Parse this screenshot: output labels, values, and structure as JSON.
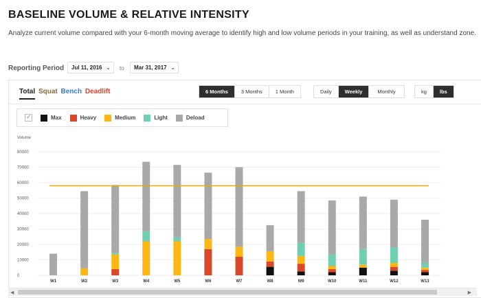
{
  "header": {
    "title": "BASELINE VOLUME & RELATIVE INTENSITY",
    "description": "Analyze current volume compared with your 6-month moving average to identify high and low volume periods in your training, as well as understand zone."
  },
  "reporting": {
    "label": "Reporting Period",
    "start_date": "Jul 11, 2016",
    "to": "to",
    "end_date": "Mar 31, 2017"
  },
  "lifts": {
    "total": "Total",
    "squat": "Squat",
    "bench": "Bench",
    "deadlift": "Deadlift"
  },
  "range_buttons": [
    "6 Months",
    "3 Months",
    "1 Month"
  ],
  "range_selected": "6 Months",
  "interval_buttons": [
    "Daily",
    "Weekly",
    "Monthly"
  ],
  "interval_selected": "Weekly",
  "unit_buttons": [
    "kg",
    "lbs"
  ],
  "unit_selected": "lbs",
  "legend": [
    {
      "name": "Max",
      "color": "#111111"
    },
    {
      "name": "Heavy",
      "color": "#d9482b"
    },
    {
      "name": "Medium",
      "color": "#fdb715"
    },
    {
      "name": "Light",
      "color": "#6fcfb2"
    },
    {
      "name": "Deload",
      "color": "#a9a9a9"
    }
  ],
  "chart_data": {
    "type": "bar",
    "stacked": true,
    "ylabel": "Volume",
    "ylim": [
      0,
      80000
    ],
    "yticks": [
      0,
      10000,
      20000,
      30000,
      40000,
      50000,
      60000,
      70000,
      80000
    ],
    "categories": [
      "W1",
      "W2",
      "W3",
      "W4",
      "W5",
      "W6",
      "W7",
      "W8",
      "W9",
      "W10",
      "W11",
      "W12",
      "W13"
    ],
    "series": [
      {
        "name": "Max",
        "color": "#111111",
        "values": [
          0,
          0,
          0,
          0,
          0,
          0,
          0,
          5500,
          2500,
          2000,
          5000,
          3000,
          2000
        ]
      },
      {
        "name": "Heavy",
        "color": "#d9482b",
        "values": [
          0,
          0,
          4000,
          0,
          0,
          17000,
          12000,
          3500,
          5000,
          2000,
          0,
          2500,
          1500
        ]
      },
      {
        "name": "Medium",
        "color": "#fdb715",
        "values": [
          0,
          4500,
          9500,
          22000,
          22000,
          6500,
          6500,
          6500,
          5000,
          2000,
          2000,
          2500,
          1500
        ]
      },
      {
        "name": "Light",
        "color": "#6fcfb2",
        "values": [
          0,
          0,
          1000,
          6500,
          2500,
          0,
          0,
          0,
          8500,
          7500,
          10000,
          10000,
          3000
        ]
      },
      {
        "name": "Deload",
        "color": "#a9a9a9",
        "values": [
          14000,
          50000,
          44000,
          45000,
          47000,
          43000,
          51500,
          17000,
          33500,
          35000,
          34000,
          31000,
          28000
        ]
      }
    ],
    "baseline_average": 58000,
    "baseline_color": "#f0a800"
  }
}
